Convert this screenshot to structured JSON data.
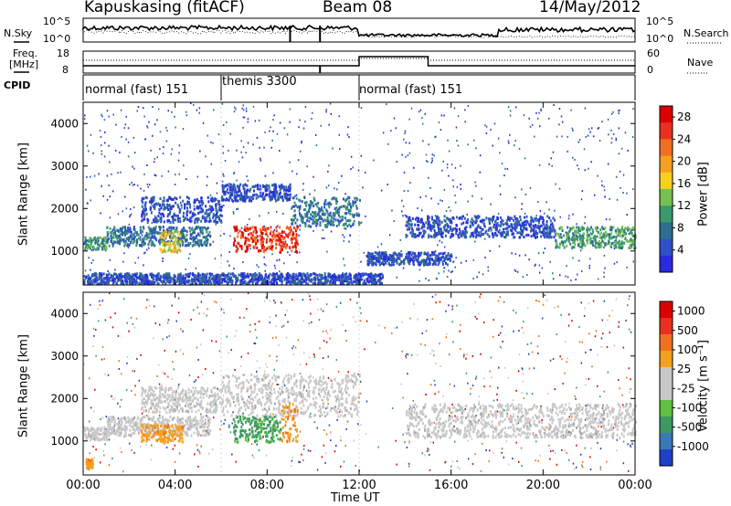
{
  "header": {
    "station": "Kapuskasing (fitACF)",
    "beam": "Beam 08",
    "date": "14/May/2012"
  },
  "noise_panel": {
    "left_label": "N.Sky",
    "right_label": "N.Search",
    "ticks_left": [
      "10^5",
      "10^0"
    ],
    "ticks_right": [
      "10^5",
      "10^0"
    ]
  },
  "freq_panel": {
    "left_label_1": "Freq.",
    "left_label_2": "[MHz]",
    "ticks_left": [
      "18",
      "8"
    ],
    "right_label": "Nave",
    "ticks_right": [
      "60",
      "0"
    ]
  },
  "cpid": {
    "label": "CPID",
    "segments": [
      {
        "start_hr": 0,
        "end_hr": 6,
        "name": "normal (fast) 151"
      },
      {
        "start_hr": 6,
        "end_hr": 12,
        "name": "themis 3300"
      },
      {
        "start_hr": 12,
        "end_hr": 24,
        "name": "normal (fast) 151"
      }
    ]
  },
  "chart_data": [
    {
      "type": "heatmap",
      "title": "",
      "xlabel": "Time UT",
      "ylabel": "Slant Range [km]",
      "xlim": [
        0,
        24
      ],
      "ylim": [
        200,
        4500
      ],
      "x_ticks": [
        "00:00",
        "04:00",
        "08:00",
        "12:00",
        "16:00",
        "20:00",
        "00:00"
      ],
      "y_ticks": [
        "1000",
        "2000",
        "3000",
        "4000"
      ],
      "colorbar": {
        "label": "Power [dB]",
        "ticks": [
          "28",
          "24",
          "20",
          "16",
          "12",
          "8",
          "4"
        ],
        "colors": [
          "#2a2ae0",
          "#3050c8",
          "#2e6e8e",
          "#3a9a6e",
          "#78c050",
          "#f5d020",
          "#f5a020",
          "#f07020",
          "#e83020",
          "#dd0000"
        ]
      },
      "echo_bands": [
        {
          "t0": 0.0,
          "t1": 1.0,
          "r0": 1050,
          "r1": 1350,
          "level": 3
        },
        {
          "t0": 1.0,
          "t1": 5.5,
          "r0": 1150,
          "r1": 1600,
          "level": 2
        },
        {
          "t0": 2.5,
          "t1": 6.0,
          "r0": 1700,
          "r1": 2300,
          "level": 1
        },
        {
          "t0": 6.0,
          "t1": 9.0,
          "r0": 2200,
          "r1": 2600,
          "level": 1
        },
        {
          "t0": 9.0,
          "t1": 12.0,
          "r0": 1600,
          "r1": 2300,
          "level": 2
        },
        {
          "t0": 6.5,
          "t1": 9.3,
          "r0": 1000,
          "r1": 1600,
          "level": 8
        },
        {
          "t0": 3.3,
          "t1": 4.2,
          "r0": 1000,
          "r1": 1500,
          "level": 5
        },
        {
          "t0": 14.0,
          "t1": 20.5,
          "r0": 1350,
          "r1": 1850,
          "level": 1
        },
        {
          "t0": 20.5,
          "t1": 24.0,
          "r0": 1100,
          "r1": 1600,
          "level": 3
        },
        {
          "t0": 12.3,
          "t1": 16.0,
          "r0": 700,
          "r1": 1000,
          "level": 1
        },
        {
          "t0": 0.0,
          "t1": 13.0,
          "r0": 250,
          "r1": 500,
          "level": 1
        }
      ]
    },
    {
      "type": "heatmap",
      "title": "",
      "xlabel": "Time UT",
      "ylabel": "Slant Range [km]",
      "xlim": [
        0,
        24
      ],
      "ylim": [
        200,
        4500
      ],
      "x_ticks": [
        "00:00",
        "04:00",
        "08:00",
        "12:00",
        "16:00",
        "20:00",
        "00:00"
      ],
      "y_ticks": [
        "1000",
        "2000",
        "3000",
        "4000"
      ],
      "colorbar": {
        "label": "Velocity [m s⁻¹]",
        "ticks": [
          "1000",
          "500",
          "100",
          "25",
          "-25",
          "-100",
          "-500",
          "-1000"
        ],
        "colors": [
          "#2040c8",
          "#3a78b8",
          "#3c9a60",
          "#60c040",
          "#c8c8c8",
          "#c8c8c8",
          "#f5a020",
          "#f07020",
          "#e83020",
          "#dd0000"
        ]
      },
      "echo_bands": [
        {
          "t0": 0.0,
          "t1": 1.0,
          "r0": 1050,
          "r1": 1350,
          "level": "ground"
        },
        {
          "t0": 1.0,
          "t1": 5.5,
          "r0": 1150,
          "r1": 1600,
          "level": "ground"
        },
        {
          "t0": 2.5,
          "t1": 6.0,
          "r0": 1700,
          "r1": 2300,
          "level": "ground"
        },
        {
          "t0": 6.0,
          "t1": 12.0,
          "r0": 1600,
          "r1": 2600,
          "level": "ground"
        },
        {
          "t0": 2.5,
          "t1": 4.3,
          "r0": 1000,
          "r1": 1400,
          "level": "orange"
        },
        {
          "t0": 6.5,
          "t1": 8.6,
          "r0": 1000,
          "r1": 1600,
          "level": "green"
        },
        {
          "t0": 8.6,
          "t1": 9.3,
          "r0": 1000,
          "r1": 1900,
          "level": "orange"
        },
        {
          "t0": 0.1,
          "t1": 0.4,
          "r0": 400,
          "r1": 600,
          "level": "orange"
        },
        {
          "t0": 14.0,
          "t1": 24.0,
          "r0": 1100,
          "r1": 1900,
          "level": "ground"
        }
      ]
    }
  ]
}
